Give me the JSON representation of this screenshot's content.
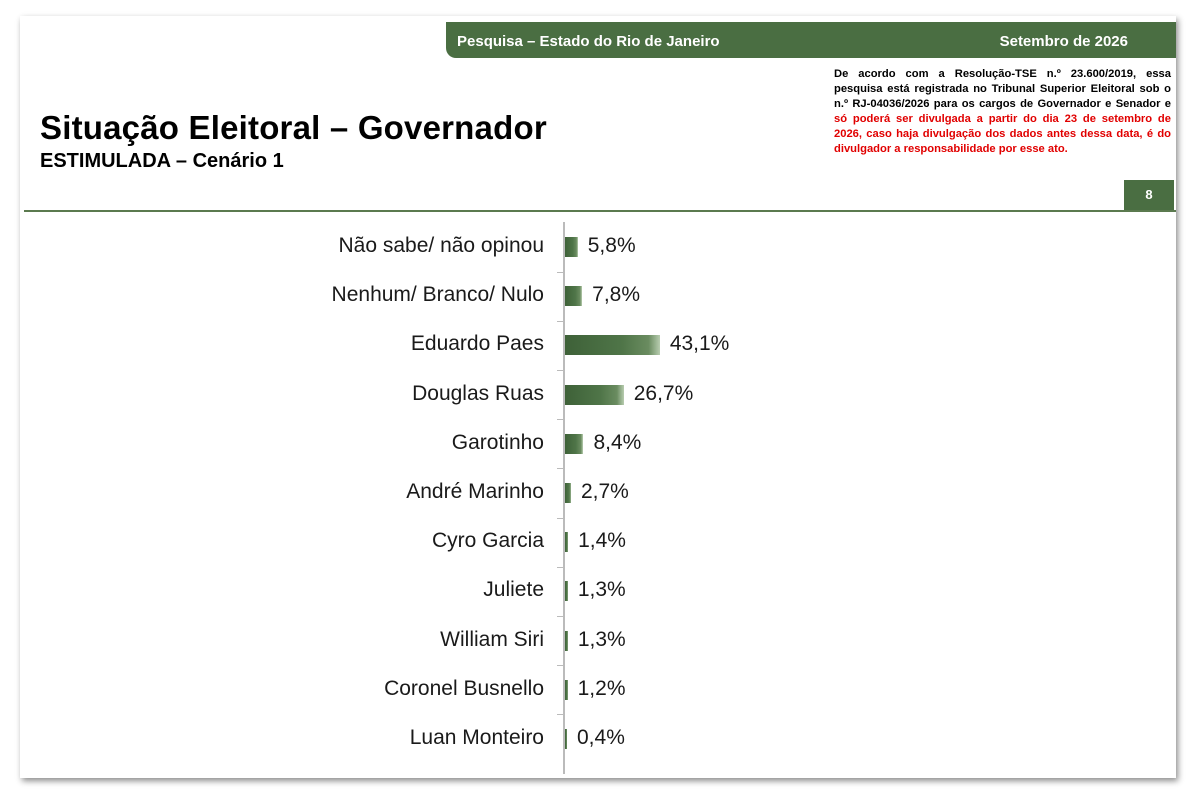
{
  "header": {
    "survey_title": "Pesquisa – Estado do Rio de Janeiro",
    "date": "Setembro de 2026",
    "page_number": "8"
  },
  "notice": {
    "text_black": "De acordo com a Resolução-TSE n.º 23.600/2019, essa pesquisa está registrada no Tribunal Superior Eleitoral sob o n.º RJ-04036/2026 para os cargos de Governador e Senador e",
    "text_red": "só poderá ser divulgada a partir do dia 23 de setembro de 2026, caso haja divulgação dos dados antes dessa data, é do divulgador a responsabilidade por esse ato."
  },
  "colors": {
    "brand_green": "#4a6e42",
    "notice_red": "#e10000"
  },
  "chart_data": {
    "type": "bar",
    "orientation": "horizontal",
    "title": "Situação Eleitoral – Governador",
    "subtitle": "ESTIMULADA – Cenário 1",
    "categories": [
      "Não sabe/ não opinou",
      "Nenhum/ Branco/ Nulo",
      "Eduardo Paes",
      "Douglas Ruas",
      "Garotinho",
      "André Marinho",
      "Cyro Garcia",
      "Juliete",
      "William Siri",
      "Coronel Busnello",
      "Luan Monteiro"
    ],
    "values": [
      5.8,
      7.8,
      43.1,
      26.7,
      8.4,
      2.7,
      1.4,
      1.3,
      1.3,
      1.2,
      0.4
    ],
    "value_labels": [
      "5,8%",
      "7,8%",
      "43,1%",
      "26,7%",
      "8,4%",
      "2,7%",
      "1,4%",
      "1,3%",
      "1,3%",
      "1,2%",
      "0,4%"
    ],
    "unit": "%",
    "xlim": [
      0,
      100
    ],
    "grid": false
  }
}
